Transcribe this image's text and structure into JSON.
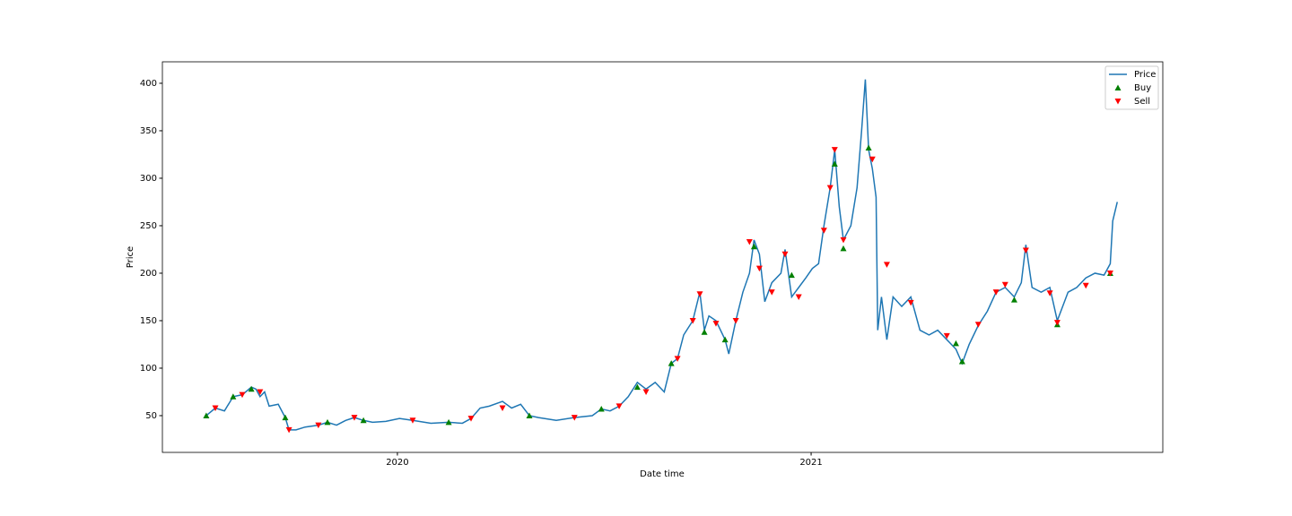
{
  "chart_data": {
    "type": "line",
    "xlabel": "Date time",
    "ylabel": "Price",
    "xlim": [
      2019.432,
      2021.85
    ],
    "xticks": [
      2020,
      2021
    ],
    "ylim": [
      11.3,
      422.6
    ],
    "yticks": [
      50,
      100,
      150,
      200,
      250,
      300,
      350,
      400
    ],
    "legend": "upper right",
    "series": [
      {
        "name": "Price",
        "type": "line",
        "color": "#1f77b4",
        "x": [
          2019.538,
          2019.56,
          2019.582,
          2019.603,
          2019.625,
          2019.647,
          2019.658,
          2019.668,
          2019.679,
          2019.69,
          2019.712,
          2019.729,
          2019.738,
          2019.755,
          2019.777,
          2019.809,
          2019.831,
          2019.853,
          2019.875,
          2019.896,
          2019.918,
          2019.94,
          2019.972,
          2020.005,
          2020.037,
          2020.081,
          2020.124,
          2020.157,
          2020.178,
          2020.2,
          2020.222,
          2020.254,
          2020.276,
          2020.298,
          2020.319,
          2020.341,
          2020.384,
          2020.428,
          2020.471,
          2020.493,
          2020.514,
          2020.536,
          2020.558,
          2020.58,
          2020.601,
          2020.623,
          2020.645,
          2020.662,
          2020.677,
          2020.692,
          2020.714,
          2020.731,
          2020.742,
          2020.753,
          2020.77,
          2020.792,
          2020.801,
          2020.818,
          2020.835,
          2020.851,
          2020.862,
          2020.875,
          2020.888,
          2020.905,
          2020.927,
          2020.937,
          2020.953,
          2020.97,
          2020.987,
          2021.003,
          2021.018,
          2021.031,
          2021.046,
          2021.057,
          2021.068,
          2021.078,
          2021.096,
          2021.111,
          2021.122,
          2021.131,
          2021.139,
          2021.148,
          2021.157,
          2021.161,
          2021.17,
          2021.183,
          2021.198,
          2021.219,
          2021.241,
          2021.263,
          2021.285,
          2021.306,
          2021.328,
          2021.35,
          2021.365,
          2021.382,
          2021.404,
          2021.426,
          2021.447,
          2021.469,
          2021.491,
          2021.508,
          2021.519,
          2021.534,
          2021.556,
          2021.577,
          2021.595,
          2021.621,
          2021.642,
          2021.664,
          2021.686,
          2021.708,
          2021.723,
          2021.729,
          2021.74
        ],
        "values": [
          50,
          58,
          55,
          70,
          72,
          80,
          78,
          70,
          75,
          60,
          62,
          48,
          35,
          35,
          38,
          40,
          43,
          40,
          45,
          48,
          45,
          43,
          44,
          47,
          45,
          42,
          43,
          42,
          47,
          58,
          60,
          65,
          58,
          62,
          50,
          48,
          45,
          48,
          50,
          57,
          55,
          60,
          70,
          85,
          78,
          85,
          75,
          105,
          110,
          135,
          150,
          180,
          140,
          155,
          150,
          130,
          115,
          150,
          180,
          200,
          235,
          220,
          170,
          190,
          200,
          225,
          175,
          185,
          195,
          205,
          210,
          250,
          290,
          330,
          270,
          235,
          250,
          290,
          350,
          404,
          330,
          310,
          280,
          140,
          175,
          130,
          175,
          165,
          175,
          140,
          135,
          140,
          130,
          120,
          105,
          125,
          145,
          160,
          180,
          185,
          175,
          190,
          230,
          185,
          180,
          185,
          150,
          180,
          185,
          195,
          200,
          198,
          210,
          255,
          275
        ]
      },
      {
        "name": "Buy",
        "type": "scatter",
        "marker": "up",
        "color": "#008000",
        "x": [
          2019.538,
          2019.603,
          2019.647,
          2019.729,
          2019.831,
          2019.918,
          2020.124,
          2020.319,
          2020.493,
          2020.58,
          2020.662,
          2020.742,
          2020.792,
          2020.862,
          2020.953,
          2021.057,
          2021.078,
          2021.139,
          2021.35,
          2021.365,
          2021.491,
          2021.595,
          2021.723
        ],
        "values": [
          50,
          70,
          78,
          48,
          43,
          45,
          43,
          50,
          57,
          80,
          105,
          138,
          130,
          228,
          198,
          315,
          226,
          332,
          126,
          107,
          172,
          146,
          200
        ]
      },
      {
        "name": "Sell",
        "type": "scatter",
        "marker": "down",
        "color": "#ff0000",
        "x": [
          2019.56,
          2019.625,
          2019.668,
          2019.738,
          2019.809,
          2019.896,
          2020.037,
          2020.178,
          2020.254,
          2020.428,
          2020.536,
          2020.601,
          2020.677,
          2020.714,
          2020.731,
          2020.77,
          2020.818,
          2020.851,
          2020.875,
          2020.905,
          2020.937,
          2020.97,
          2021.031,
          2021.046,
          2021.057,
          2021.078,
          2021.148,
          2021.183,
          2021.241,
          2021.328,
          2021.404,
          2021.447,
          2021.469,
          2021.519,
          2021.577,
          2021.595,
          2021.664,
          2021.723
        ],
        "values": [
          58,
          72,
          75,
          35,
          40,
          48,
          45,
          47,
          58,
          48,
          60,
          75,
          110,
          150,
          178,
          147,
          150,
          233,
          205,
          180,
          220,
          175,
          245,
          290,
          330,
          235,
          320,
          209,
          169,
          134,
          146,
          180,
          188,
          224,
          179,
          148,
          187,
          200
        ]
      }
    ]
  }
}
